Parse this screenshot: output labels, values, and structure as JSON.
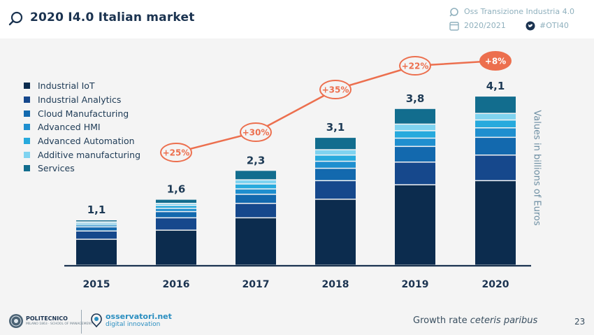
{
  "header": {
    "title": "2020 I4.0 Italian market",
    "observatory": "Oss Transizione Industria 4.0",
    "year_range": "2020/2021",
    "hashtag": "#OTI40"
  },
  "footer": {
    "university": "POLITECNICO",
    "university_sub": "MILANO 1863 · SCHOOL OF MANAGEMENT",
    "brand": "osservatori.net",
    "brand_sub": "digital innovation",
    "note_plain": "Growth rate ",
    "note_italic": "ceteris paribus",
    "page": "23"
  },
  "chart_data": {
    "type": "bar",
    "stacked": true,
    "title": "2020 I4.0 Italian market",
    "ylabel": "Values in billions of Euros",
    "categories": [
      "2015",
      "2016",
      "2017",
      "2018",
      "2019",
      "2020"
    ],
    "totals": [
      1.1,
      1.6,
      2.3,
      3.1,
      3.8,
      4.1
    ],
    "total_labels": [
      "1,1",
      "1,6",
      "2,3",
      "3,1",
      "3,8",
      "4,1"
    ],
    "series": [
      {
        "name": "Industrial IoT",
        "color": "#0c2c4e",
        "values": [
          0.63,
          0.85,
          1.15,
          1.6,
          1.95,
          2.05
        ]
      },
      {
        "name": "Industrial Analytics",
        "color": "#16488c",
        "values": [
          0.2,
          0.3,
          0.35,
          0.45,
          0.55,
          0.62
        ]
      },
      {
        "name": "Cloud Manufacturing",
        "color": "#1369ae",
        "values": [
          0.1,
          0.15,
          0.22,
          0.3,
          0.38,
          0.43
        ]
      },
      {
        "name": "Advanced HMI",
        "color": "#1f8fcf",
        "values": [
          0.05,
          0.08,
          0.13,
          0.17,
          0.2,
          0.23
        ]
      },
      {
        "name": "Advanced Automation",
        "color": "#27aadd",
        "values": [
          0.04,
          0.07,
          0.12,
          0.15,
          0.18,
          0.19
        ]
      },
      {
        "name": "Additive manufacturing",
        "color": "#7fd3f0",
        "values": [
          0.03,
          0.05,
          0.1,
          0.13,
          0.16,
          0.16
        ]
      },
      {
        "name": "Services",
        "color": "#126d8e",
        "values": [
          0.05,
          0.1,
          0.23,
          0.3,
          0.38,
          0.42
        ]
      }
    ],
    "growth": {
      "categories": [
        "2016",
        "2017",
        "2018",
        "2019",
        "2020"
      ],
      "labels": [
        "+25%",
        "+30%",
        "+35%",
        "+22%",
        "+8%"
      ],
      "color": "#ec6f4e"
    },
    "ylim": [
      0,
      5.5
    ],
    "grid": false,
    "legend": "top-left"
  }
}
